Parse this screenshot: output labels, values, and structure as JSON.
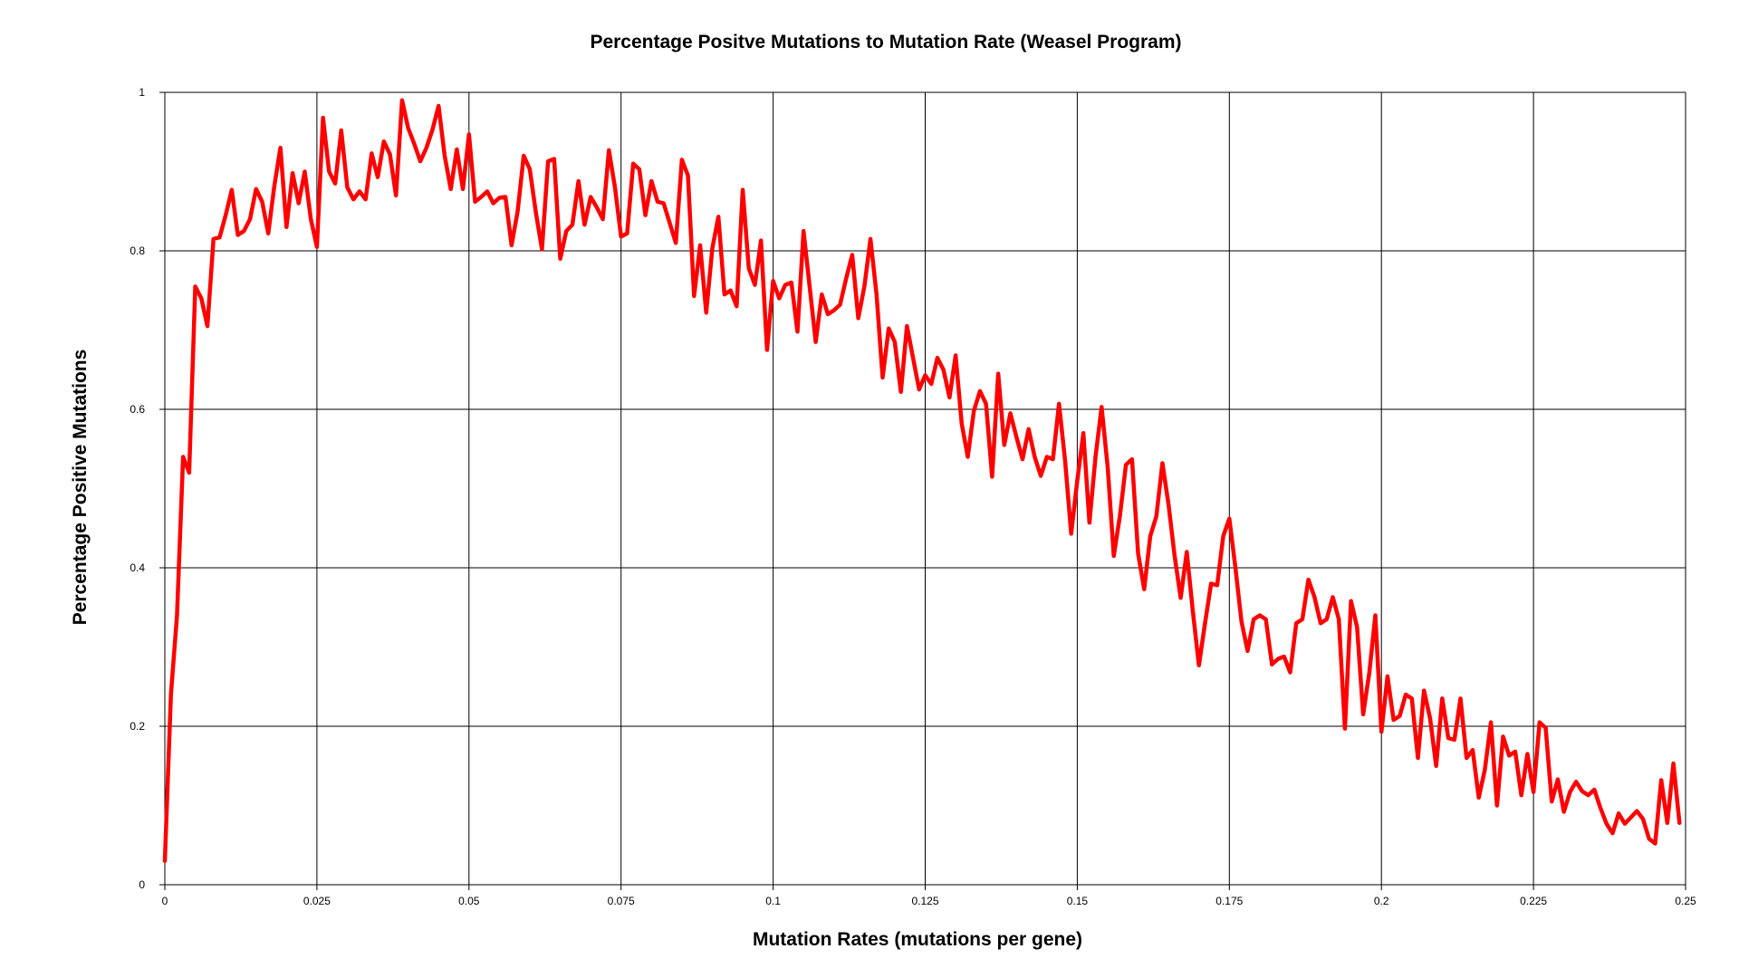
{
  "chart_data": {
    "type": "line",
    "title": "Percentage Positve Mutations to Mutation Rate (Weasel Program)",
    "xlabel": "Mutation Rates (mutations per gene)",
    "ylabel": "Percentage Positive Mutations",
    "xlim": [
      0,
      0.25
    ],
    "ylim": [
      0,
      1
    ],
    "x_ticks": [
      0,
      0.025,
      0.05,
      0.075,
      0.1,
      0.125,
      0.15,
      0.175,
      0.2,
      0.225,
      0.25
    ],
    "x_tick_labels": [
      "0",
      "0.025",
      "0.05",
      "0.075",
      "0.1",
      "0.125",
      "0.15",
      "0.175",
      "0.2",
      "0.225",
      "0.25"
    ],
    "y_ticks": [
      0,
      0.2,
      0.4,
      0.6,
      0.8,
      1
    ],
    "y_tick_labels": [
      "0",
      "0.2",
      "0.4",
      "0.6",
      "0.8",
      "1"
    ],
    "grid": true,
    "x_step": 0.001,
    "series": [
      {
        "color": "#ff0000",
        "y": [
          0.03,
          0.24,
          0.34,
          0.54,
          0.52,
          0.755,
          0.74,
          0.705,
          0.815,
          0.817,
          0.845,
          0.877,
          0.82,
          0.825,
          0.84,
          0.878,
          0.862,
          0.822,
          0.882,
          0.93,
          0.83,
          0.898,
          0.86,
          0.9,
          0.84,
          0.805,
          0.968,
          0.9,
          0.885,
          0.952,
          0.88,
          0.865,
          0.875,
          0.865,
          0.923,
          0.893,
          0.938,
          0.922,
          0.87,
          0.99,
          0.955,
          0.935,
          0.913,
          0.93,
          0.953,
          0.983,
          0.92,
          0.878,
          0.928,
          0.878,
          0.947,
          0.862,
          0.868,
          0.875,
          0.86,
          0.867,
          0.868,
          0.807,
          0.85,
          0.92,
          0.903,
          0.848,
          0.802,
          0.913,
          0.916,
          0.79,
          0.825,
          0.833,
          0.888,
          0.833,
          0.868,
          0.855,
          0.84,
          0.927,
          0.88,
          0.818,
          0.822,
          0.91,
          0.903,
          0.845,
          0.888,
          0.862,
          0.86,
          0.835,
          0.81,
          0.915,
          0.895,
          0.743,
          0.807,
          0.722,
          0.803,
          0.843,
          0.745,
          0.75,
          0.73,
          0.877,
          0.778,
          0.757,
          0.813,
          0.675,
          0.762,
          0.74,
          0.757,
          0.76,
          0.698,
          0.825,
          0.755,
          0.685,
          0.745,
          0.72,
          0.725,
          0.732,
          0.765,
          0.795,
          0.715,
          0.755,
          0.815,
          0.745,
          0.64,
          0.702,
          0.685,
          0.622,
          0.705,
          0.665,
          0.625,
          0.643,
          0.632,
          0.665,
          0.65,
          0.615,
          0.668,
          0.582,
          0.54,
          0.598,
          0.623,
          0.607,
          0.515,
          0.645,
          0.555,
          0.595,
          0.565,
          0.537,
          0.575,
          0.54,
          0.516,
          0.54,
          0.537,
          0.607,
          0.535,
          0.443,
          0.51,
          0.57,
          0.457,
          0.54,
          0.603,
          0.527,
          0.415,
          0.465,
          0.53,
          0.537,
          0.418,
          0.373,
          0.44,
          0.465,
          0.532,
          0.48,
          0.415,
          0.362,
          0.42,
          0.345,
          0.277,
          0.33,
          0.38,
          0.378,
          0.44,
          0.462,
          0.4,
          0.332,
          0.295,
          0.335,
          0.34,
          0.335,
          0.278,
          0.285,
          0.288,
          0.268,
          0.33,
          0.335,
          0.385,
          0.363,
          0.33,
          0.335,
          0.363,
          0.335,
          0.197,
          0.358,
          0.325,
          0.215,
          0.267,
          0.34,
          0.193,
          0.263,
          0.208,
          0.213,
          0.24,
          0.235,
          0.16,
          0.245,
          0.21,
          0.15,
          0.235,
          0.185,
          0.183,
          0.235,
          0.16,
          0.17,
          0.11,
          0.145,
          0.205,
          0.1,
          0.187,
          0.163,
          0.168,
          0.113,
          0.165,
          0.117,
          0.205,
          0.198,
          0.105,
          0.133,
          0.092,
          0.117,
          0.13,
          0.118,
          0.113,
          0.12,
          0.097,
          0.077,
          0.065,
          0.09,
          0.077,
          0.085,
          0.093,
          0.083,
          0.058,
          0.052,
          0.132,
          0.078,
          0.153,
          0.078
        ]
      }
    ]
  }
}
